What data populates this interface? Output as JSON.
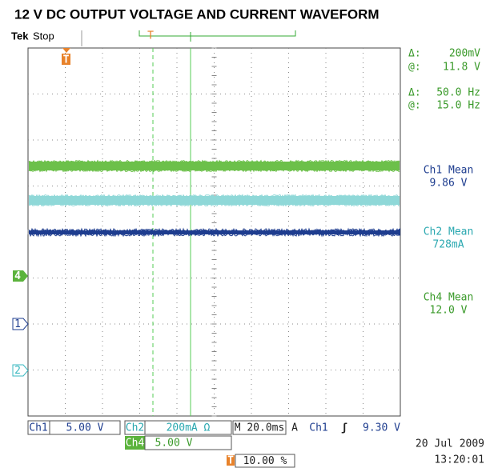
{
  "header": {
    "title": "12 V DC OUTPUT VOLTAGE AND CURRENT WAVEFORM"
  },
  "top_bar": {
    "brand": "Tek",
    "status": "Stop",
    "trigger_marker": "T"
  },
  "cursor_readouts": [
    {
      "symbol": "Δ:",
      "value": "200mV"
    },
    {
      "symbol": "@:",
      "value": "11.8 V"
    },
    {
      "symbol": "Δ:",
      "value": "50.0 Hz"
    },
    {
      "symbol": "@:",
      "value": "15.0 Hz"
    }
  ],
  "measurements": [
    {
      "label": "Ch1 Mean",
      "value": "9.86 V"
    },
    {
      "label": "Ch2 Mean",
      "value": "728mA"
    },
    {
      "label": "Ch4 Mean",
      "value": "12.0 V"
    }
  ],
  "channel_markers": [
    "4",
    "1",
    "2"
  ],
  "bottom": {
    "ch1": {
      "name": "Ch1",
      "scale": "5.00 V"
    },
    "ch2": {
      "name": "Ch2",
      "scale": "200mA Ω"
    },
    "ch4": {
      "name": "Ch4",
      "scale": "5.00 V"
    },
    "timebase": "M 20.0ms",
    "trigger": {
      "mode": "A",
      "source": "Ch1",
      "slope": "ʃ",
      "level": "9.30 V"
    },
    "trigger_position": "10.00 %",
    "date": "20 Jul  2009",
    "time": "13:20:01"
  }
}
